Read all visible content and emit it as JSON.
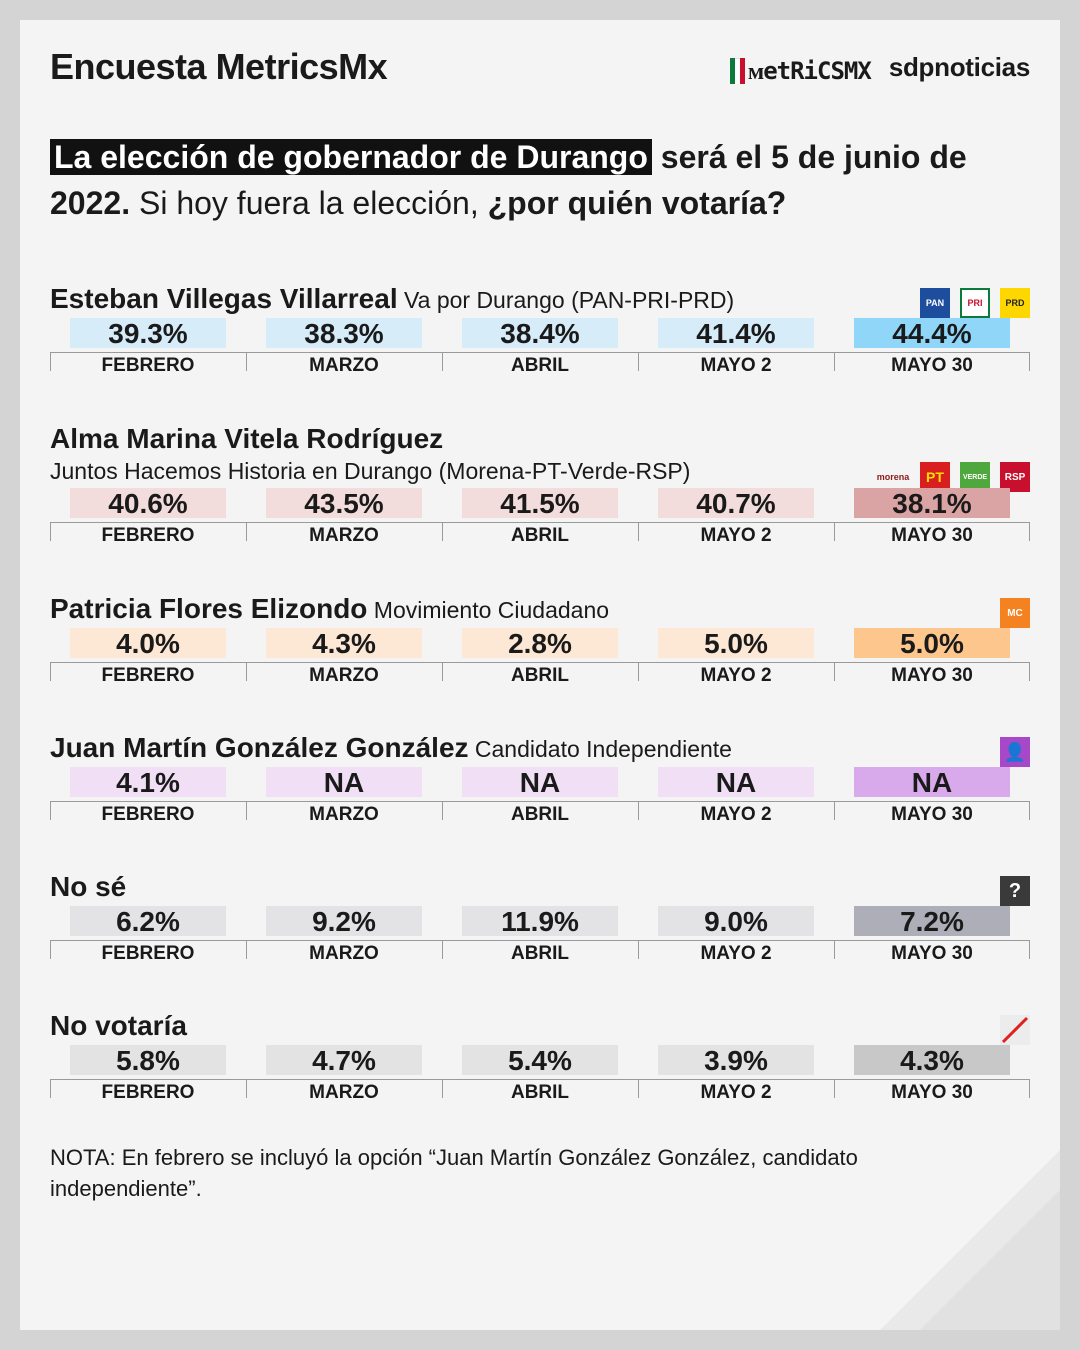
{
  "header": {
    "brand": "Encuesta MetricsMx",
    "metrics_logo": "ᴍetRiCSMX",
    "sdp_logo": "sdpnoticias"
  },
  "question": {
    "highlight": "La elección de gobernador de Durango",
    "part2": " será el 5 de junio de 2022.",
    "part3": " Si hoy fuera la elección, ",
    "part4": "¿por quién votaría?"
  },
  "colors": {
    "villegas": [
      "#d6ecf8",
      "#8fd6f8"
    ],
    "vitela": [
      "#f3dcdc",
      "#dba4a4"
    ],
    "flores": [
      "#fde8d6",
      "#fcc68c"
    ],
    "gonzalez": [
      "#f1e0f5",
      "#d8aaec"
    ],
    "nose": [
      "#e3e3e6",
      "#aeaeb8"
    ],
    "novotaria": [
      "#e3e3e3",
      "#c8c8c8"
    ]
  },
  "chart_data": {
    "type": "table",
    "months": [
      "FEBRERO",
      "MARZO",
      "ABRIL",
      "MAYO 2",
      "MAYO 30"
    ],
    "rows": [
      {
        "id": "villegas",
        "name": "Esteban Villegas Villarreal",
        "coalition": "Va por Durango (PAN-PRI-PRD)",
        "parties": [
          "PAN",
          "PRI",
          "PRD"
        ],
        "values": [
          "39.3%",
          "38.3%",
          "38.4%",
          "41.4%",
          "44.4%"
        ]
      },
      {
        "id": "vitela",
        "name": "Alma Marina Vitela Rodríguez",
        "coalition": "Juntos Hacemos Historia en Durango (Morena-PT-Verde-RSP)",
        "parties": [
          "morena",
          "PT",
          "VERDE",
          "RSP"
        ],
        "values": [
          "40.6%",
          "43.5%",
          "41.5%",
          "40.7%",
          "38.1%"
        ]
      },
      {
        "id": "flores",
        "name": "Patricia Flores Elizondo",
        "coalition": "Movimiento Ciudadano",
        "parties": [
          "MC"
        ],
        "values": [
          "4.0%",
          "4.3%",
          "2.8%",
          "5.0%",
          "5.0%"
        ]
      },
      {
        "id": "gonzalez",
        "name": "Juan Martín González González",
        "coalition": "Candidato Independiente",
        "parties": [
          "person"
        ],
        "values": [
          "4.1%",
          "NA",
          "NA",
          "NA",
          "NA"
        ]
      },
      {
        "id": "nose",
        "name": "No sé",
        "coalition": "",
        "parties": [
          "?"
        ],
        "values": [
          "6.2%",
          "9.2%",
          "11.9%",
          "9.0%",
          "7.2%"
        ]
      },
      {
        "id": "novotaria",
        "name": "No votaría",
        "coalition": "",
        "parties": [
          "slash"
        ],
        "values": [
          "5.8%",
          "4.7%",
          "5.4%",
          "3.9%",
          "4.3%"
        ]
      }
    ]
  },
  "nota": "NOTA: En febrero se incluyó la opción “Juan Martín González González, candidato independiente”."
}
